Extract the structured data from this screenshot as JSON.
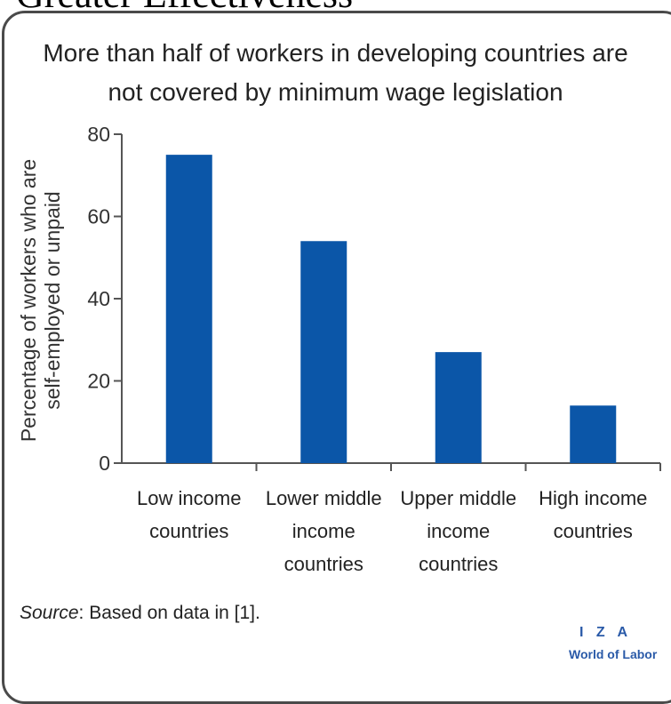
{
  "header": {
    "text": "Greater Effectiveness"
  },
  "source": {
    "label": "Source",
    "text": ": Based on data in [1]."
  },
  "logo": {
    "line1": "I Z A",
    "line2": "World of Labor"
  },
  "chart_data": {
    "type": "bar",
    "title_lines": [
      "More than half of workers in developing countries are",
      "not covered by minimum wage legislation"
    ],
    "ylabel_lines": [
      "Percentage of workers who are",
      "self-employed or unpaid"
    ],
    "xlabel": "",
    "categories": [
      [
        "Low income",
        "countries"
      ],
      [
        "Lower middle",
        "income",
        "countries"
      ],
      [
        "Upper middle",
        "income",
        "countries"
      ],
      [
        "High income",
        "countries"
      ]
    ],
    "values": [
      75,
      54,
      27,
      14
    ],
    "ylim": [
      0,
      80
    ],
    "yticks": [
      0,
      20,
      40,
      60,
      80
    ],
    "grid": false,
    "legend": "none",
    "bar_color": "#0b56a8",
    "axis_color": "#555555"
  }
}
